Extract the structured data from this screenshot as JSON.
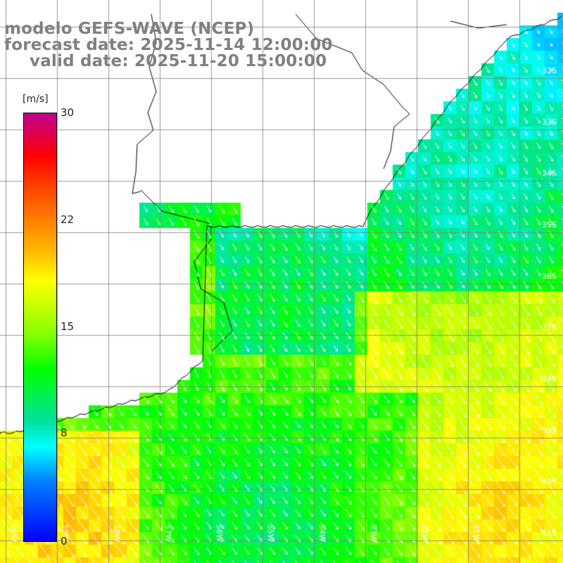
{
  "titles": {
    "model": "modelo GEFS-WAVE (NCEP)",
    "forecast": "forecast date: 2025-11-14 12:00:00",
    "valid": "valid date: 2025-11-20 15:00:00"
  },
  "colorbar": {
    "unit": "[m/s]",
    "ticks": [
      "30",
      "22",
      "15",
      "8",
      "0"
    ]
  },
  "map": {
    "variable": "wind speed and direction",
    "lat_labels": [
      "32S",
      "33S",
      "34S",
      "35S",
      "36S",
      "37S",
      "38S",
      "39S",
      "40S",
      "41S"
    ],
    "lon_labels": [
      "60W",
      "59W",
      "58W",
      "57W",
      "56W",
      "55W",
      "54W",
      "53W",
      "52W",
      "51W"
    ],
    "colors": {
      "low": "#0000ff",
      "mid": "#00ff00",
      "high": "#ff0000",
      "max": "#c00090",
      "land": "#ffffff",
      "coast": "#000000",
      "grid": "#808080",
      "title": "#808080"
    }
  }
}
